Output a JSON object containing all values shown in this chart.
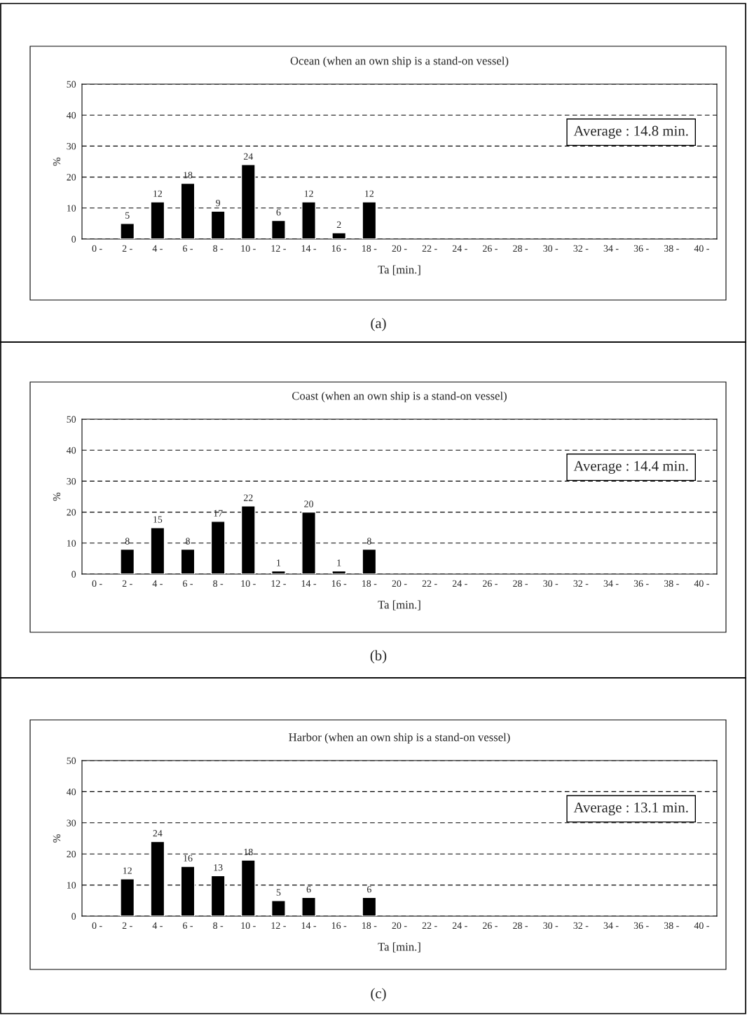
{
  "chart_data": [
    {
      "type": "bar",
      "title": "Ocean (when an own ship is a stand-on vessel)",
      "xlabel": "Ta [min.]",
      "ylabel": "%",
      "categories": [
        "0 -",
        "2 -",
        "4 -",
        "6 -",
        "8 -",
        "10 -",
        "12 -",
        "14 -",
        "16 -",
        "18 -",
        "20 -",
        "22 -",
        "24 -",
        "26 -",
        "28 -",
        "30 -",
        "32 -",
        "34 -",
        "36 -",
        "38 -",
        "40 -"
      ],
      "values": [
        null,
        5,
        12,
        18,
        9,
        24,
        6,
        12,
        2,
        12,
        null,
        null,
        null,
        null,
        null,
        null,
        null,
        null,
        null,
        null,
        null
      ],
      "value_labels": [
        null,
        "5",
        "12",
        "18",
        "9",
        "24",
        "6",
        "12",
        "2",
        "12",
        null,
        null,
        null,
        null,
        null,
        null,
        null,
        null,
        null,
        null,
        null
      ],
      "color": "#000000",
      "ylim": [
        0,
        50
      ],
      "yticks": [
        0,
        10,
        20,
        30,
        40,
        50
      ],
      "grid": "y",
      "annotations": [
        "Average : 14.8 min.",
        "(a)"
      ]
    },
    {
      "type": "bar",
      "title": "Coast (when an own ship is a stand-on vessel)",
      "xlabel": "Ta [min.]",
      "ylabel": "%",
      "categories": [
        "0 -",
        "2 -",
        "4 -",
        "6 -",
        "8 -",
        "10 -",
        "12 -",
        "14 -",
        "16 -",
        "18 -",
        "20 -",
        "22 -",
        "24 -",
        "26 -",
        "28 -",
        "30 -",
        "32 -",
        "34 -",
        "36 -",
        "38 -",
        "40 -"
      ],
      "values": [
        null,
        8,
        15,
        8,
        17,
        22,
        1,
        20,
        1,
        8,
        null,
        null,
        null,
        null,
        null,
        null,
        null,
        null,
        null,
        null,
        null
      ],
      "value_labels": [
        null,
        "8",
        "15",
        "8",
        "17",
        "22",
        "1",
        "20",
        "1",
        "8",
        null,
        null,
        null,
        null,
        null,
        null,
        null,
        null,
        null,
        null,
        null
      ],
      "color": "#000000",
      "ylim": [
        0,
        50
      ],
      "yticks": [
        0,
        10,
        20,
        30,
        40,
        50
      ],
      "grid": "y",
      "annotations": [
        "Average : 14.4 min.",
        "(b)"
      ]
    },
    {
      "type": "bar",
      "title": "Harbor (when an own ship is a stand-on vessel)",
      "xlabel": "Ta [min.]",
      "ylabel": "%",
      "categories": [
        "0 -",
        "2 -",
        "4 -",
        "6 -",
        "8 -",
        "10 -",
        "12 -",
        "14 -",
        "16 -",
        "18 -",
        "20 -",
        "22 -",
        "24 -",
        "26 -",
        "28 -",
        "30 -",
        "32 -",
        "34 -",
        "36 -",
        "38 -",
        "40 -"
      ],
      "values": [
        null,
        12,
        24,
        16,
        13,
        18,
        5,
        6,
        null,
        6,
        null,
        null,
        null,
        null,
        null,
        null,
        null,
        null,
        null,
        null,
        null
      ],
      "value_labels": [
        null,
        "12",
        "24",
        "16",
        "13",
        "18",
        "5",
        "6",
        null,
        "6",
        null,
        null,
        null,
        null,
        null,
        null,
        null,
        null,
        null,
        null,
        null
      ],
      "color": "#000000",
      "ylim": [
        0,
        50
      ],
      "yticks": [
        0,
        10,
        20,
        30,
        40,
        50
      ],
      "grid": "y",
      "annotations": [
        "Average : 13.1 min.",
        "(c)"
      ]
    }
  ]
}
